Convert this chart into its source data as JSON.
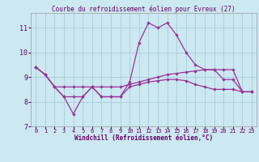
{
  "title": "Courbe du refroidissement éolien pour Evreux (27)",
  "xlabel": "Windchill (Refroidissement éolien,°C)",
  "background_color": "#cce8f0",
  "grid_color": "#aaccdd",
  "line_color": "#993399",
  "xlim": [
    -0.5,
    23.5
  ],
  "ylim": [
    7.0,
    11.6
  ],
  "yticks": [
    7,
    8,
    9,
    10,
    11
  ],
  "xticks": [
    0,
    1,
    2,
    3,
    4,
    5,
    6,
    7,
    8,
    9,
    10,
    11,
    12,
    13,
    14,
    15,
    16,
    17,
    18,
    19,
    20,
    21,
    22,
    23
  ],
  "series": [
    [
      9.4,
      9.1,
      8.6,
      8.2,
      7.5,
      8.2,
      8.6,
      8.2,
      8.2,
      8.2,
      8.8,
      10.4,
      11.2,
      11.0,
      11.2,
      10.7,
      10.0,
      9.5,
      9.3,
      9.3,
      8.9,
      8.9,
      8.4,
      8.4
    ],
    [
      9.4,
      9.1,
      8.6,
      8.6,
      8.6,
      8.6,
      8.6,
      8.6,
      8.6,
      8.6,
      8.7,
      8.8,
      8.9,
      9.0,
      9.1,
      9.15,
      9.2,
      9.25,
      9.3,
      9.3,
      9.3,
      9.3,
      8.4,
      8.4
    ],
    [
      9.4,
      9.1,
      8.6,
      8.2,
      8.2,
      8.2,
      8.6,
      8.2,
      8.2,
      8.2,
      8.6,
      8.7,
      8.8,
      8.85,
      8.9,
      8.9,
      8.85,
      8.7,
      8.6,
      8.5,
      8.5,
      8.5,
      8.4,
      8.4
    ]
  ]
}
